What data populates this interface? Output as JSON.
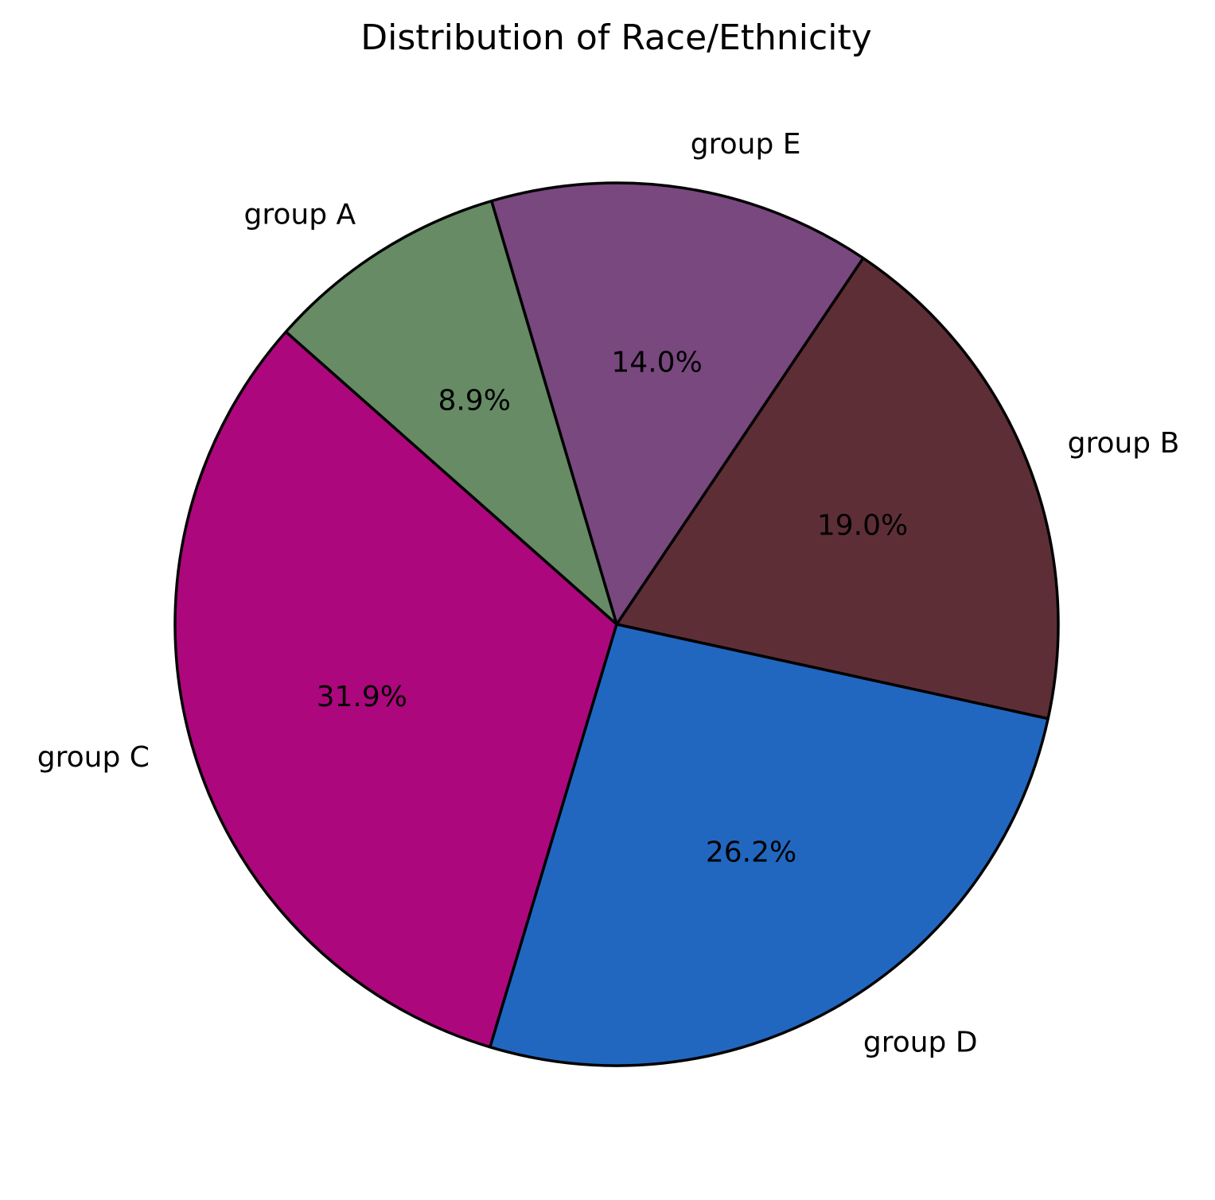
{
  "chart_data": {
    "type": "pie",
    "title": "Distribution of Race/Ethnicity",
    "slices": [
      {
        "label": "group C",
        "value": 31.9,
        "pct_label": "31.9%",
        "color": "#ad077d"
      },
      {
        "label": "group D",
        "value": 26.2,
        "pct_label": "26.2%",
        "color": "#2167c0"
      },
      {
        "label": "group B",
        "value": 19.0,
        "pct_label": "19.0%",
        "color": "#5e2e37"
      },
      {
        "label": "group E",
        "value": 14.0,
        "pct_label": "14.0%",
        "color": "#79487f"
      },
      {
        "label": "group A",
        "value": 8.9,
        "pct_label": "8.9%",
        "color": "#668b65"
      }
    ],
    "start_angle_deg": 138.5,
    "direction": "counterclockwise",
    "legend": "none",
    "grid": false
  }
}
